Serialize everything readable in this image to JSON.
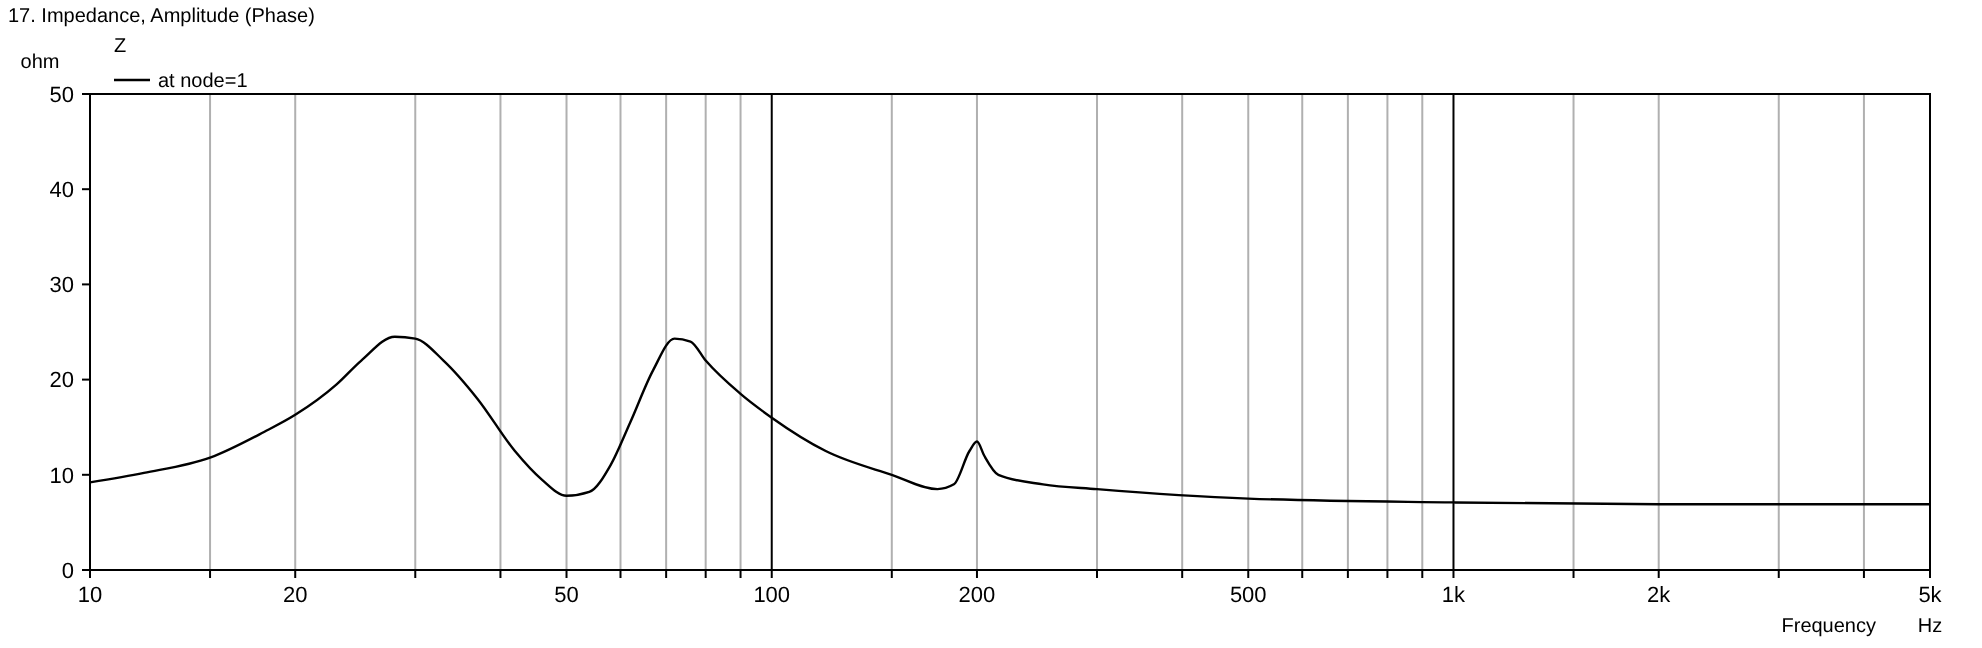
{
  "chart_data": {
    "type": "line",
    "title": "17. Impedance, Amplitude (Phase)",
    "xlabel": "Frequency",
    "ylabel": "ohm",
    "annotations": [
      "Z",
      "Hz"
    ],
    "log": "x",
    "grid": "x",
    "legend": "top left",
    "line_style": "solid",
    "xlim": [
      10,
      5000
    ],
    "ylim": [
      0,
      50
    ],
    "xticks": [
      10,
      {
        "value": 15,
        "label": null
      },
      20,
      {
        "value": 30,
        "label": null
      },
      {
        "value": 40,
        "label": null
      },
      50,
      {
        "value": 60,
        "label": null
      },
      {
        "value": 70,
        "label": null
      },
      {
        "value": 80,
        "label": null
      },
      {
        "value": 90,
        "label": null
      },
      100,
      {
        "value": 150,
        "label": null
      },
      200,
      {
        "value": 300,
        "label": null
      },
      {
        "value": 400,
        "label": null
      },
      500,
      {
        "value": 600,
        "label": null
      },
      {
        "value": 700,
        "label": null
      },
      {
        "value": 800,
        "label": null
      },
      {
        "value": 900,
        "label": null
      },
      {
        "value": 1000,
        "label": "1k"
      },
      {
        "value": 1500,
        "label": null
      },
      {
        "value": 2000,
        "label": "2k"
      },
      {
        "value": 3000,
        "label": null
      },
      {
        "value": 4000,
        "label": null
      },
      {
        "value": 5000,
        "label": "5k"
      }
    ],
    "yticks": [
      0,
      10,
      20,
      30,
      40,
      50
    ],
    "series": [
      {
        "name": "at node=1",
        "color": "#000000",
        "x": [
          10,
          12,
          15,
          18,
          20,
          23,
          25,
          28,
          30,
          33,
          37,
          42,
          46,
          50,
          54,
          58,
          62,
          67,
          72,
          76,
          80,
          90,
          100,
          120,
          150,
          175,
          185,
          195,
          200,
          205,
          215,
          250,
          300,
          500,
          1000,
          2000,
          5000
        ],
        "values": [
          9.2,
          10.2,
          11.8,
          14.5,
          16.3,
          19.5,
          22,
          24.5,
          24.3,
          22,
          18,
          12.5,
          9.5,
          7.8,
          8.2,
          11,
          15.5,
          21,
          24.3,
          24,
          22,
          18.5,
          16,
          12.5,
          10,
          8.5,
          9,
          12.5,
          13.5,
          12,
          10,
          9,
          8.5,
          7.5,
          7.1,
          6.9,
          6.9
        ]
      }
    ]
  }
}
